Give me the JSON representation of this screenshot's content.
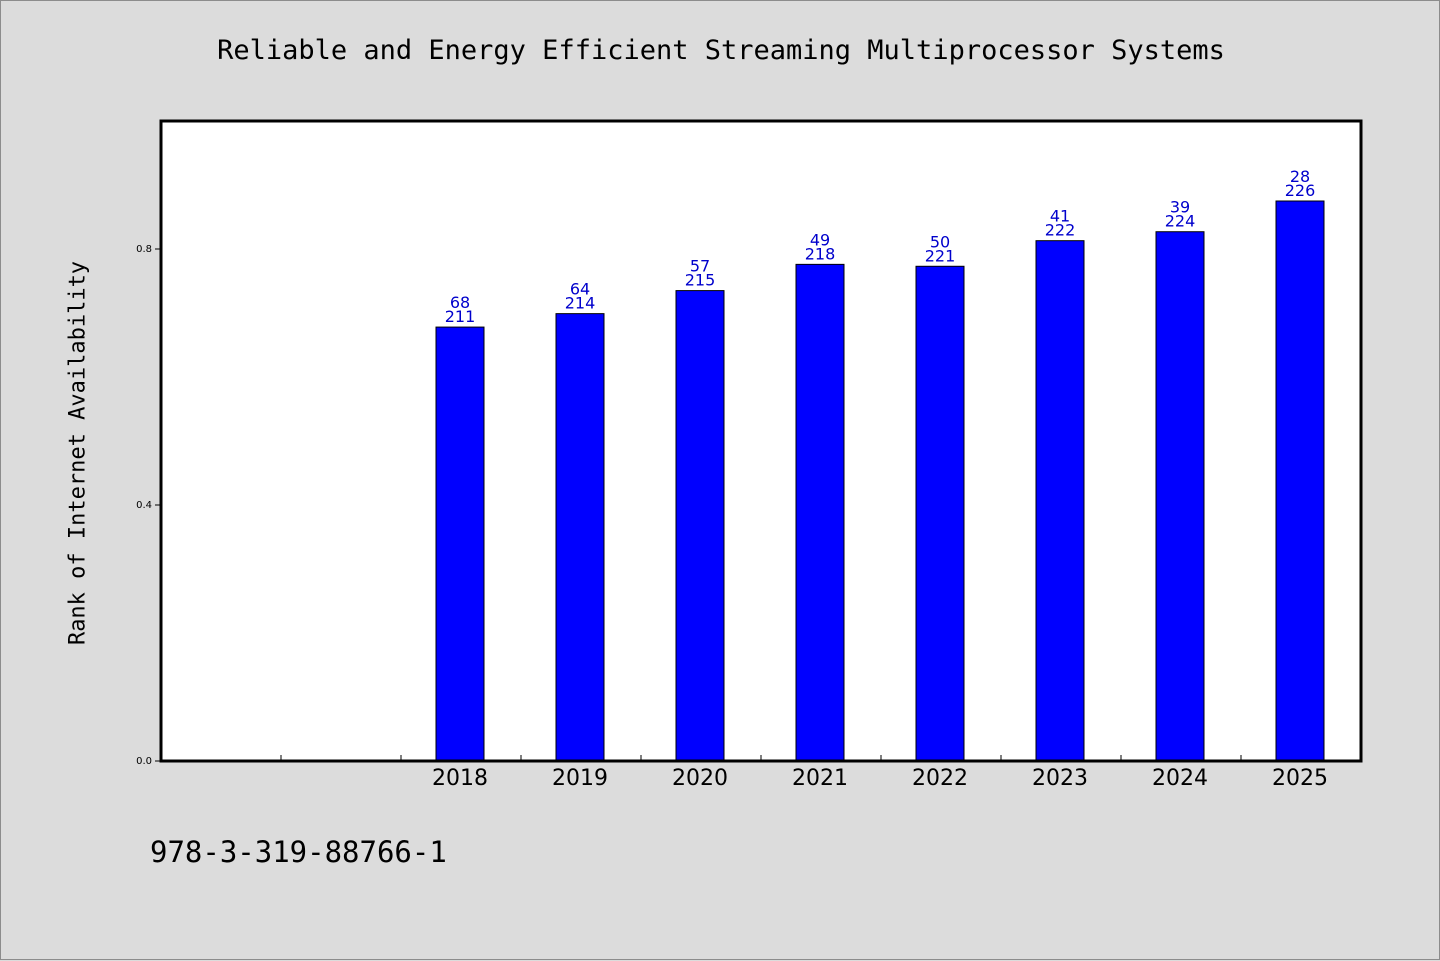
{
  "chart_data": {
    "type": "bar",
    "title": "Reliable and Energy Efficient Streaming Multiprocessor Systems",
    "xlabel": "",
    "ylabel": "Rank of Internet Availability",
    "categories": [
      "2018",
      "2019",
      "2020",
      "2021",
      "2022",
      "2023",
      "2024",
      "2025"
    ],
    "values": [
      0.678,
      0.699,
      0.735,
      0.776,
      0.773,
      0.813,
      0.827,
      0.875
    ],
    "bar_labels_top": [
      "68",
      "64",
      "57",
      "49",
      "50",
      "41",
      "39",
      "28"
    ],
    "bar_labels_bottom": [
      "211",
      "214",
      "215",
      "218",
      "221",
      "222",
      "224",
      "226"
    ],
    "ylim": [
      0,
      1.0
    ],
    "yticks": [
      0.0,
      0.4,
      0.8
    ],
    "ytick_labels": [
      "0.0",
      "0.4",
      "0.8"
    ],
    "xlim_slots": 10,
    "first_category_slot": 2,
    "grid": false,
    "legend": "none",
    "colors": {
      "bar": "#0000ff",
      "bar_label": "#0000cc",
      "frame": "#000000",
      "plot_bg": "#ffffff",
      "page_bg": "#dcdcdc"
    }
  },
  "footer": {
    "isbn": "978-3-319-88766-1"
  }
}
